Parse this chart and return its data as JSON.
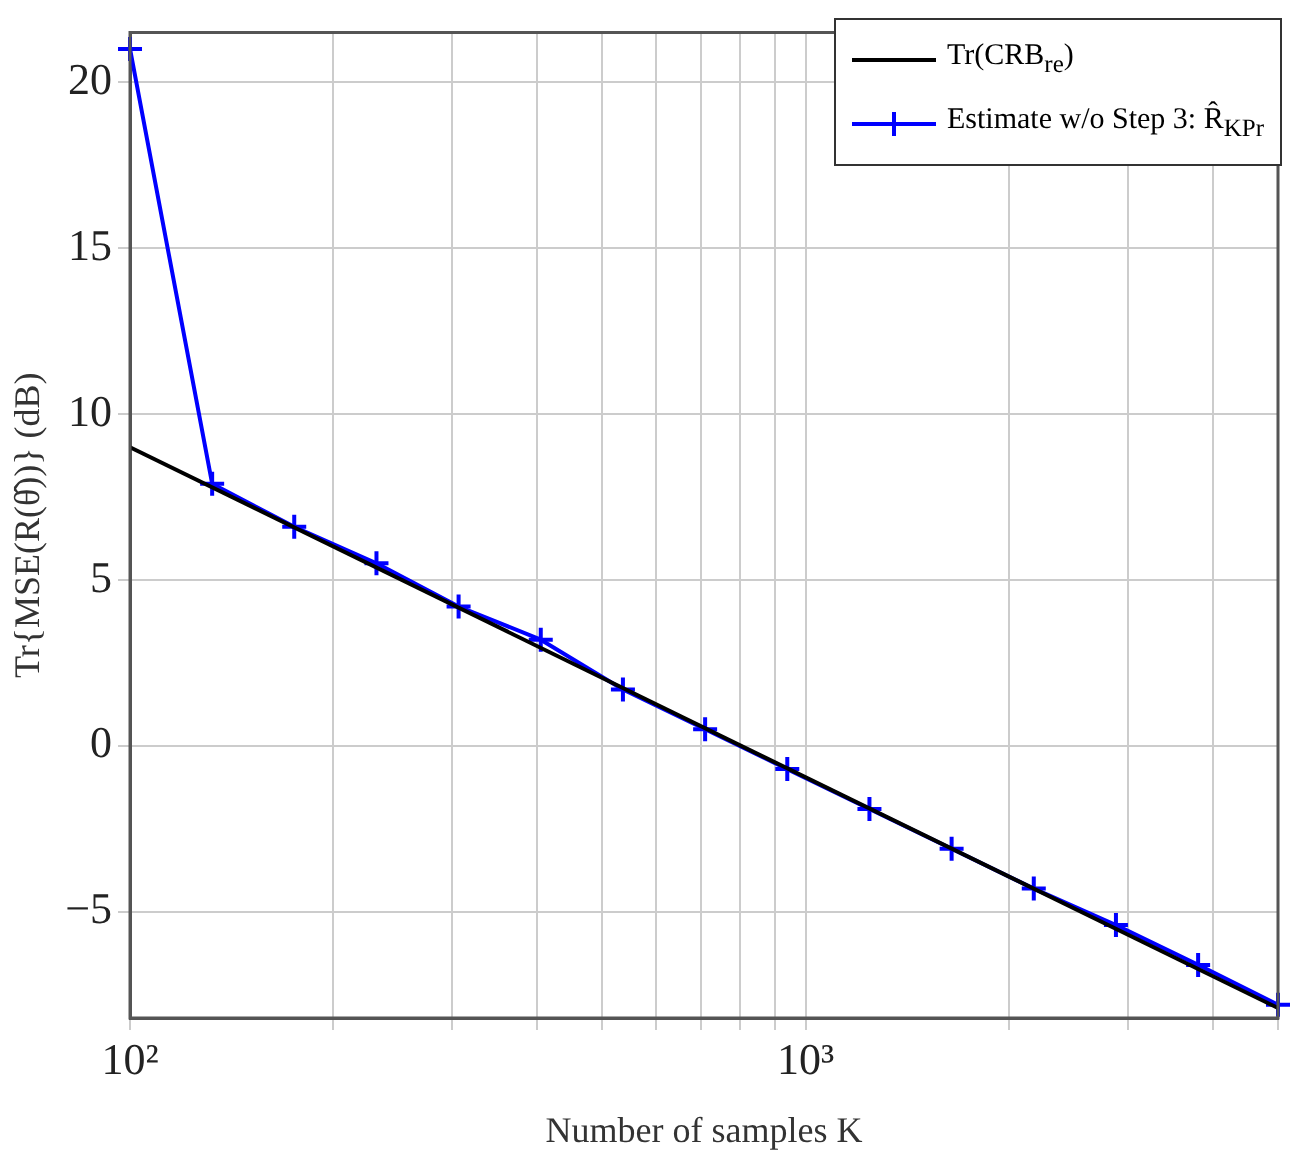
{
  "chart_data": {
    "type": "line",
    "xlabel": "Number of samples K",
    "ylabel": "Tr{MSE(R(θ̂))} (dB)",
    "log": "x",
    "grid": true,
    "legend": "top right",
    "xlim": [
      100,
      5000
    ],
    "ylim": [
      -8.2,
      21.5
    ],
    "xticks": [
      {
        "value": 100,
        "label": "10²"
      },
      {
        "value": 200,
        "label": null
      },
      {
        "value": 300,
        "label": null
      },
      {
        "value": 400,
        "label": null
      },
      {
        "value": 500,
        "label": null
      },
      {
        "value": 600,
        "label": null
      },
      {
        "value": 700,
        "label": null
      },
      {
        "value": 800,
        "label": null
      },
      {
        "value": 900,
        "label": null
      },
      {
        "value": 1000,
        "label": "10³"
      },
      {
        "value": 2000,
        "label": null
      },
      {
        "value": 3000,
        "label": null
      },
      {
        "value": 4000,
        "label": null
      },
      {
        "value": 5000,
        "label": null
      }
    ],
    "yticks": [
      -5,
      0,
      5,
      10,
      15,
      20
    ],
    "series": [
      {
        "name": "Tr(CRB$_{re}$)",
        "color": "#000000",
        "marker": "none",
        "x": [
          100,
          5000
        ],
        "values": [
          9.0,
          -7.9
        ]
      },
      {
        "name": "Estimate w/o Step 3: R̂$_{KPr}$",
        "color": "#0000ff",
        "marker": "cross",
        "x": [
          100,
          132.3,
          175.0,
          231.6,
          306.4,
          405.4,
          536.4,
          709.8,
          939.1,
          1242.6,
          1644.1,
          2175.4,
          2878.3,
          3808.5,
          5000
        ],
        "values": [
          21.0,
          7.9,
          6.6,
          5.5,
          4.2,
          3.2,
          1.7,
          0.5,
          -0.7,
          -1.9,
          -3.1,
          -4.3,
          -5.4,
          -6.6,
          -7.8
        ]
      }
    ]
  }
}
